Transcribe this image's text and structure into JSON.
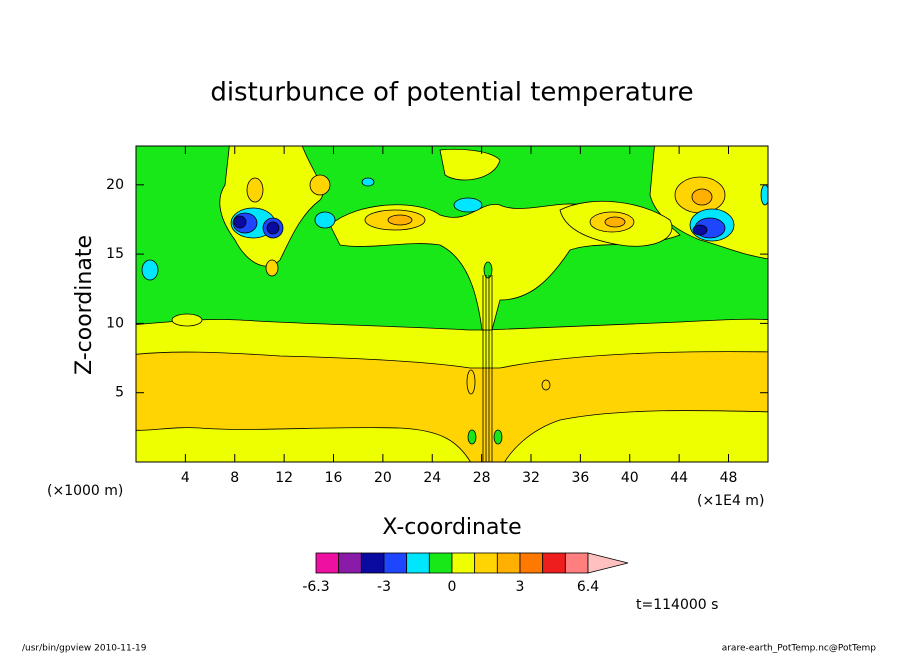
{
  "chart_data": {
    "type": "contour",
    "title": "disturbunce of potential temperature",
    "xlabel": "X-coordinate",
    "ylabel": "Z-coordinate",
    "xunit": "(×1000 m)",
    "xunit2": "(×1E4 m)",
    "xlim": [
      0,
      51.2
    ],
    "ylim": [
      0,
      22.8
    ],
    "xticks": [
      4,
      8,
      12,
      16,
      20,
      24,
      28,
      32,
      36,
      40,
      44,
      48
    ],
    "yticks": [
      5,
      10,
      15,
      20
    ],
    "levels": [
      -6.3,
      -5,
      -4,
      -3,
      -2,
      -1,
      0,
      1,
      2,
      3,
      4,
      5,
      6.4
    ],
    "colors": [
      "#ee10a0",
      "#8a1aa8",
      "#0a0aa0",
      "#1e46ff",
      "#00e6ff",
      "#18e818",
      "#eeff00",
      "#ffd400",
      "#ffb000",
      "#ff7800",
      "#ee1e1e",
      "#ff7f7f",
      "#ffc0c0"
    ],
    "colorbar_ticks": [
      -6.3,
      -3,
      0,
      3,
      6.4
    ],
    "time_label": "t=114000 s",
    "footer_left": "/usr/bin/gpview  2010-11-19",
    "footer_right": "arare-earth_PotTemp.nc@PotTemp"
  }
}
